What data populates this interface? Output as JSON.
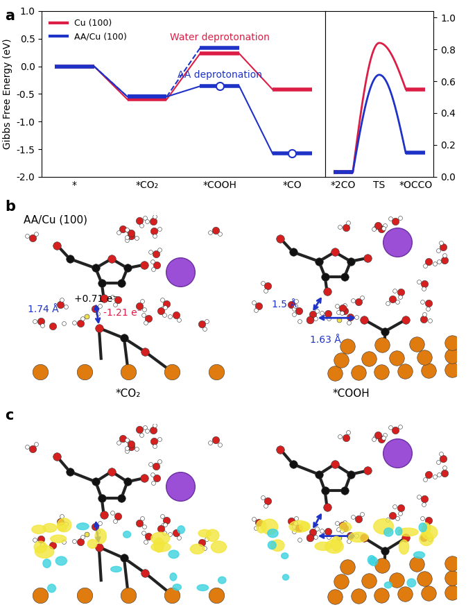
{
  "chart_data": [
    {
      "type": "energy_diagram",
      "ylabel": "Gibbs Free Energy (eV)",
      "categories": [
        "*",
        "*CO₂",
        "*COOH",
        "*CO"
      ],
      "ylim": [
        -2.0,
        1.0
      ],
      "yticks": [
        -2.0,
        -1.5,
        -1.0,
        -0.5,
        0.0,
        0.5,
        1.0
      ],
      "legend": "upper left",
      "series": [
        {
          "name": "Cu (100)",
          "color": "#dc1e46",
          "values": [
            0.0,
            -0.6,
            0.23,
            -0.42
          ]
        },
        {
          "name": "AA/Cu (100)",
          "color": "#1e32c8",
          "values": [
            0.0,
            -0.55,
            -0.36,
            -1.58
          ],
          "marker": "circle",
          "marked": [
            false,
            false,
            true,
            true
          ],
          "alt_values": [
            null,
            -0.55,
            0.33,
            null
          ]
        }
      ],
      "annotations": [
        {
          "text": "Water deprotonation",
          "color": "#dc1e46",
          "at": "*COOH"
        },
        {
          "text": "AA deprotonation",
          "color": "#1e32c8",
          "at": "*COOH"
        }
      ]
    },
    {
      "type": "energy_diagram",
      "categories": [
        "*2CO",
        "TS",
        "*OCCO"
      ],
      "ylim": [
        0.0,
        1.04
      ],
      "yticks": [
        0.0,
        0.2,
        0.4,
        0.6,
        0.8,
        1.0
      ],
      "series": [
        {
          "name": "Cu (100)",
          "color": "#dc1e46",
          "values": [
            0.03,
            0.84,
            0.55
          ]
        },
        {
          "name": "AA/Cu (100)",
          "color": "#1e32c8",
          "values": [
            0.03,
            0.64,
            0.15
          ]
        }
      ]
    }
  ],
  "panels": {
    "a": {
      "label": "a"
    },
    "b": {
      "label": "b",
      "title": "AA/Cu (100)",
      "structures": [
        {
          "caption": "*CO₂",
          "annotations": [
            {
              "text": "1.74 Å",
              "color": "#1e32c8"
            },
            {
              "text": "+0.71 e⁻",
              "color": "black"
            },
            {
              "text": "-1.21 e⁻",
              "color": "#dc1e46"
            }
          ]
        },
        {
          "caption": "*COOH",
          "annotations": [
            {
              "text": "1.5 Å",
              "color": "#1e32c8"
            },
            {
              "text": "1.63 Å",
              "color": "#1e32c8"
            }
          ]
        }
      ]
    },
    "c": {
      "label": "c"
    }
  }
}
